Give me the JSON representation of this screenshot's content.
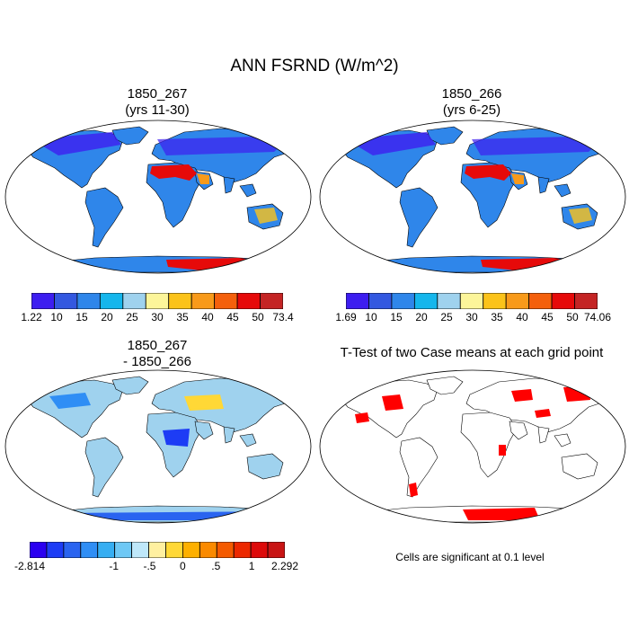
{
  "figure": {
    "title": "ANN FSRND (W/m^2)",
    "panels": [
      {
        "title_line1": "1850_267",
        "title_line2": "(yrs 11-30)"
      },
      {
        "title_line1": "1850_266",
        "title_line2": "(yrs 6-25)"
      },
      {
        "title_line1": "1850_267",
        "title_line2": "- 1850_266"
      },
      {
        "title_line1": "T-Test of two Case means at each grid point",
        "title_line2": ""
      }
    ],
    "colorbars": [
      {
        "labels": [
          "1.22",
          "10",
          "15",
          "20",
          "25",
          "30",
          "35",
          "40",
          "45",
          "50",
          "73.4"
        ],
        "colors": [
          "#3d1ef0",
          "#3358e0",
          "#2f86ea",
          "#15b6ec",
          "#9fd2ee",
          "#fcf59a",
          "#fbc31a",
          "#f89a1a",
          "#f4600c",
          "#e60a0a",
          "#c42424"
        ]
      },
      {
        "labels": [
          "1.69",
          "10",
          "15",
          "20",
          "25",
          "30",
          "35",
          "40",
          "45",
          "50",
          "74.06"
        ],
        "colors": [
          "#3d1ef0",
          "#3358e0",
          "#2f86ea",
          "#15b6ec",
          "#9fd2ee",
          "#fcf59a",
          "#fbc31a",
          "#f89a1a",
          "#f4600c",
          "#e60a0a",
          "#c42424"
        ]
      },
      {
        "labels": [
          "-2.814",
          "-1",
          "-.5",
          "0",
          ".5",
          "1",
          "2.292"
        ],
        "colors": [
          "#2a00f0",
          "#1d3cf5",
          "#2a64f0",
          "#2f8ef5",
          "#36aef2",
          "#6ec8f5",
          "#bfe8fa",
          "#fff0a0",
          "#ffd836",
          "#fdb000",
          "#fa8a00",
          "#f45a00",
          "#ec2800",
          "#dd0a0a",
          "#c81414"
        ]
      }
    ],
    "significance_note": "Cells are significant at 0.1 level"
  }
}
